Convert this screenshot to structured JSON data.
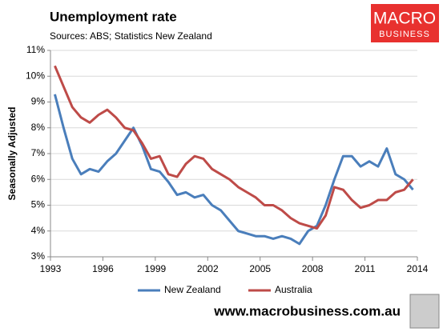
{
  "chart_data": {
    "type": "line",
    "title": "Unemployment rate",
    "subtitle": "Sources: ABS; Statistics New Zealand",
    "y_label": "Seasonally Adjusted",
    "x": [
      1993.25,
      1993.75,
      1994.25,
      1994.75,
      1995.25,
      1995.75,
      1996.25,
      1996.75,
      1997.25,
      1997.75,
      1998.25,
      1998.75,
      1999.25,
      1999.75,
      2000.25,
      2000.75,
      2001.25,
      2001.75,
      2002.25,
      2002.75,
      2003.25,
      2003.75,
      2004.25,
      2004.75,
      2005.25,
      2005.75,
      2006.25,
      2006.75,
      2007.25,
      2007.75,
      2008.25,
      2008.75,
      2009.25,
      2009.75,
      2010.25,
      2010.75,
      2011.25,
      2011.75,
      2012.25,
      2012.75,
      2013.25,
      2013.75
    ],
    "series": [
      {
        "name": "New Zealand",
        "color": "#4a7ebb",
        "values": [
          9.3,
          8.0,
          6.8,
          6.2,
          6.4,
          6.3,
          6.7,
          7.0,
          7.5,
          8.0,
          7.3,
          6.4,
          6.3,
          5.9,
          5.4,
          5.5,
          5.3,
          5.4,
          5.0,
          4.8,
          4.4,
          4.0,
          3.9,
          3.8,
          3.8,
          3.7,
          3.8,
          3.7,
          3.5,
          4.0,
          4.2,
          5.0,
          6.0,
          6.9,
          6.9,
          6.5,
          6.7,
          6.5,
          7.2,
          6.2,
          6.0,
          5.6
        ]
      },
      {
        "name": "Australia",
        "color": "#be4b48",
        "values": [
          10.4,
          9.6,
          8.8,
          8.4,
          8.2,
          8.5,
          8.7,
          8.4,
          8.0,
          7.9,
          7.4,
          6.8,
          6.9,
          6.2,
          6.1,
          6.6,
          6.9,
          6.8,
          6.4,
          6.2,
          6.0,
          5.7,
          5.5,
          5.3,
          5.0,
          5.0,
          4.8,
          4.5,
          4.3,
          4.2,
          4.1,
          4.6,
          5.7,
          5.6,
          5.2,
          4.9,
          5.0,
          5.2,
          5.2,
          5.5,
          5.6,
          6.0
        ]
      }
    ],
    "xlim": [
      1993,
      2014
    ],
    "xticks": [
      1993,
      1996,
      1999,
      2002,
      2005,
      2008,
      2011,
      2014
    ],
    "ylim": [
      3,
      11
    ],
    "yticks": [
      {
        "value": 3,
        "label": "3%"
      },
      {
        "value": 4,
        "label": "4%"
      },
      {
        "value": 5,
        "label": "5%"
      },
      {
        "value": 6,
        "label": "6%"
      },
      {
        "value": 7,
        "label": "7%"
      },
      {
        "value": 8,
        "label": "8%"
      },
      {
        "value": 9,
        "label": "9%"
      },
      {
        "value": 10,
        "label": "10%"
      },
      {
        "value": 11,
        "label": "11%"
      }
    ],
    "grid": true,
    "legend": "bottom"
  },
  "branding": {
    "logo_top": "MACRO",
    "logo_bottom": "BUSINESS",
    "footer": "www.macrobusiness.com.au"
  }
}
